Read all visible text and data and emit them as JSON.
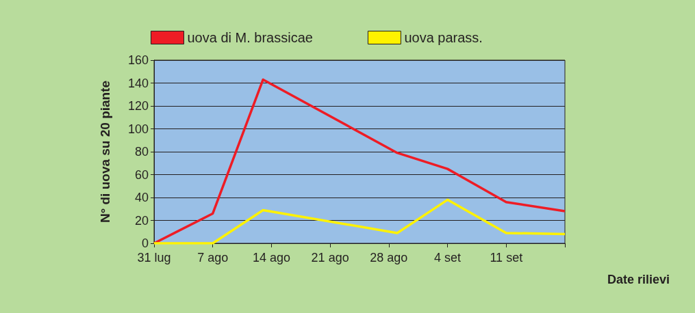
{
  "chart_data": {
    "type": "line",
    "xlabel": "Date rilievi",
    "ylabel": "N° di uova su 20 piante",
    "x": [
      "--07-31",
      "--08-07",
      "--08-13",
      "--08-29",
      "--09-04",
      "--09-11",
      "--09-18"
    ],
    "series": [
      {
        "name": "uova di M. brassicae",
        "color": "#ee1c25",
        "values": [
          0,
          26,
          143,
          79,
          65,
          36,
          28
        ]
      },
      {
        "name": "uova parass.",
        "color": "#fff200",
        "values": [
          0,
          0,
          29,
          9,
          38,
          9,
          8
        ]
      }
    ],
    "xlim": [
      "--07-31",
      "--09-18"
    ],
    "xticks": [
      {
        "value": "--07-31",
        "label": "31 lug"
      },
      {
        "value": "--08-07",
        "label": "7 ago"
      },
      {
        "value": "--08-14",
        "label": "14 ago"
      },
      {
        "value": "--08-21",
        "label": "21 ago"
      },
      {
        "value": "--08-28",
        "label": "28 ago"
      },
      {
        "value": "--09-04",
        "label": "4 set"
      },
      {
        "value": "--09-11",
        "label": "11 set"
      },
      {
        "value": "--09-18",
        "label": null
      }
    ],
    "ylim": [
      0,
      160
    ],
    "yticks": [
      0,
      20,
      40,
      60,
      80,
      100,
      120,
      140,
      160
    ],
    "grid": "y",
    "legend": "top",
    "marker": "none",
    "line_style": "solid"
  }
}
